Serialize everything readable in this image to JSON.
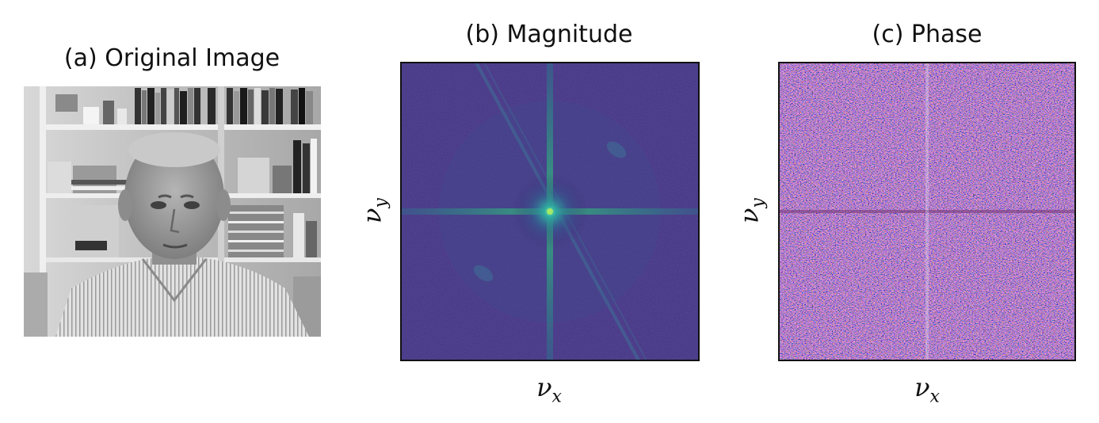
{
  "panels": {
    "original": {
      "title": "(a) Original Image"
    },
    "magnitude": {
      "title": "(b) Magnitude",
      "xlabel_base": "ν",
      "xlabel_sub": "x",
      "ylabel_base": "ν",
      "ylabel_sub": "y"
    },
    "phase": {
      "title": "(c) Phase",
      "xlabel_base": "ν",
      "xlabel_sub": "x",
      "ylabel_base": "ν",
      "ylabel_sub": "y"
    }
  },
  "colors": {
    "magnitude_background": "#3b1f6e",
    "magnitude_peak": "#35b779",
    "phase_a": "#5b2a86",
    "phase_b": "#d4605a",
    "phase_c": "#e8e0f4"
  },
  "icons": [
    "portrait-photo-image",
    "magnitude-spectrum-image",
    "phase-spectrum-image"
  ]
}
